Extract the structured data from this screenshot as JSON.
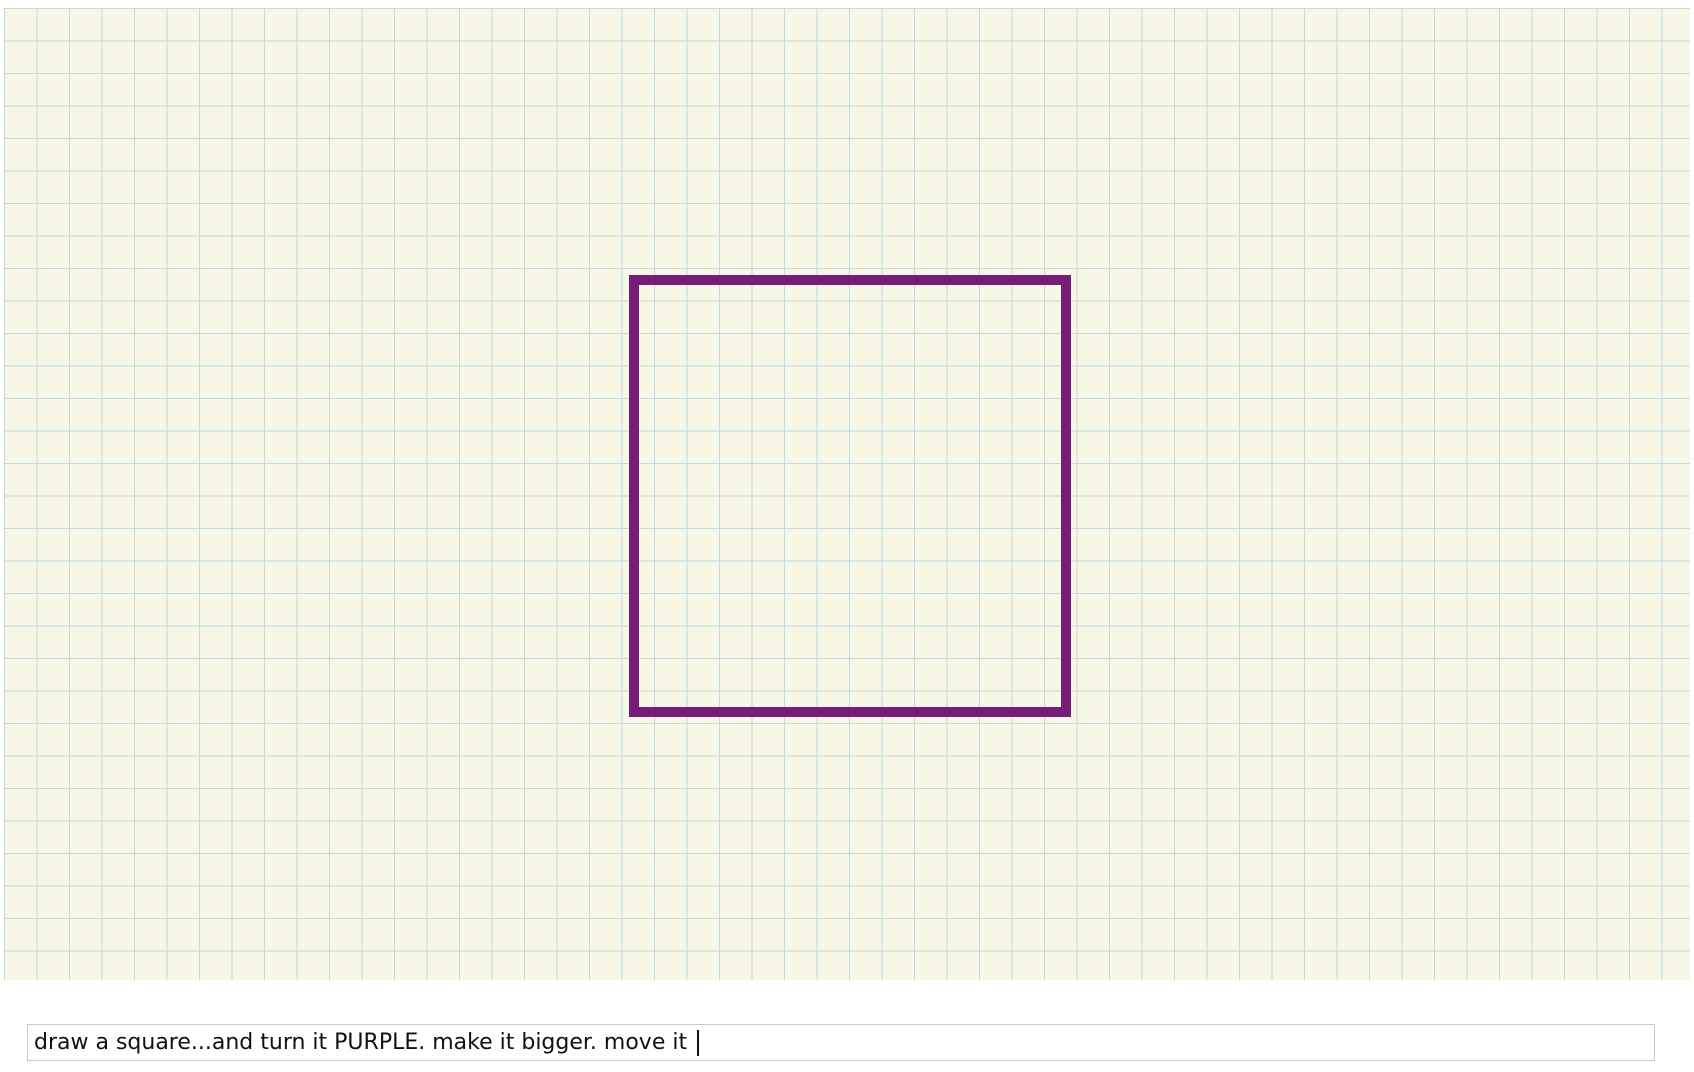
{
  "canvas": {
    "background_color": "#f8f6e5",
    "grid_color": "#bcd9e4",
    "shapes": [
      {
        "type": "square",
        "stroke_color": "#761d7a",
        "fill": "none"
      }
    ]
  },
  "command_input": {
    "value": "draw a square...and turn it PURPLE. make it bigger. move it "
  }
}
